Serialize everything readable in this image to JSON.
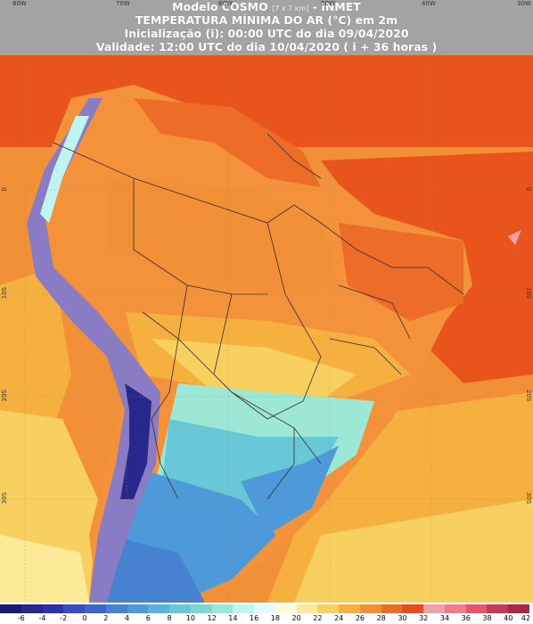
{
  "header": {
    "line1_a": "Modelo COSMO",
    "line1_b": "[7 x 7 km]",
    "line1_c": "- INMET",
    "line2": "TEMPERATURA MÍNIMA DO AR (°C) em 2m",
    "line3": "Inicialização (i): 00:00 UTC do dia 09/04/2020",
    "line4": "Validade: 12:00 UTC do dia 10/04/2020 ( i + 36 horas )"
  },
  "axes": {
    "lon_labels": [
      "80W",
      "70W",
      "60W",
      "50W",
      "40W",
      "30W"
    ],
    "lat_labels": [
      "0",
      "10S",
      "20S",
      "30S"
    ],
    "lat_labels_right": [
      "0",
      "10S",
      "20S",
      "30S"
    ]
  },
  "colors": {
    "ocean_warm": "#e8541c",
    "land_warm": "#f4923c",
    "mid_warm": "#f6b048",
    "mild": "#f4d868",
    "cool_1": "#c8f0f0",
    "cool_2": "#5fc7c2",
    "cool_3": "#4a97c8",
    "cool_4": "#3a62b8",
    "andes": "#8a7cc4",
    "border": "#3a2a2a"
  },
  "legend": {
    "labels": [
      "-6",
      "-4",
      "-2",
      "0",
      "2",
      "4",
      "6",
      "8",
      "10",
      "12",
      "14",
      "16",
      "18",
      "20",
      "22",
      "24",
      "26",
      "28",
      "30",
      "32",
      "34",
      "36",
      "38",
      "40",
      "42"
    ],
    "colors": [
      "#1a1a70",
      "#28288c",
      "#3030a8",
      "#3c4cc0",
      "#3e66c6",
      "#4682d0",
      "#4e9ad8",
      "#58b4dc",
      "#68c8d8",
      "#7cd8cc",
      "#9ce8d4",
      "#c0f4f0",
      "#e0fcfc",
      "#fffad8",
      "#fcea98",
      "#f8d060",
      "#f6b040",
      "#f29038",
      "#ec6c28",
      "#e64c1c",
      "#f0a0a8",
      "#f07c88",
      "#e85468",
      "#c83858",
      "#a82848"
    ]
  }
}
